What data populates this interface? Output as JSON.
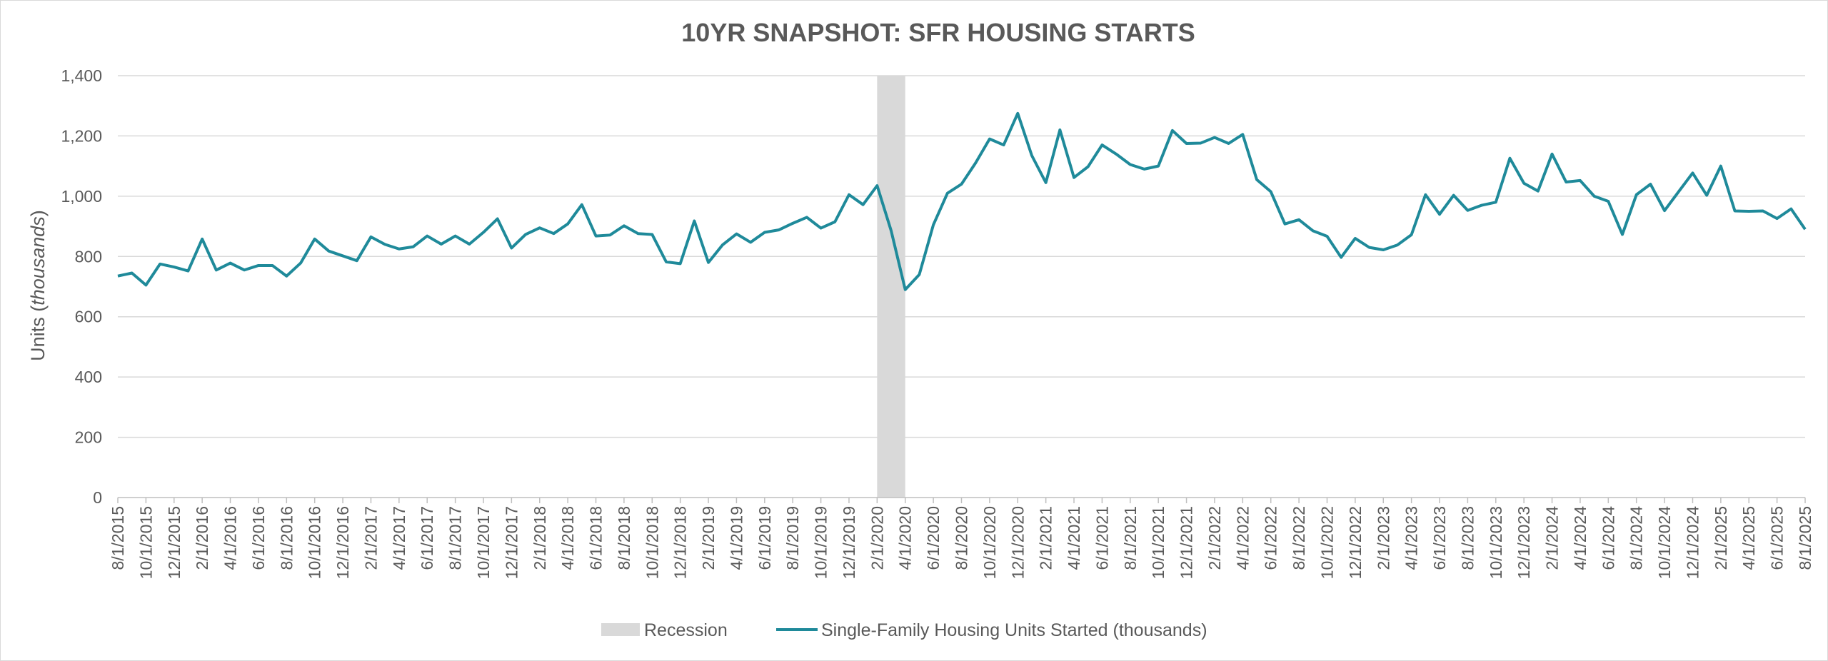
{
  "chart_data": {
    "type": "line",
    "title": "10YR SNAPSHOT: SFR HOUSING STARTS",
    "ylabel_prefix": "Units (",
    "ylabel_italic": "thousands",
    "ylabel_suffix": ")",
    "xlabel": "",
    "ylim": [
      0,
      1400
    ],
    "yticks": [
      0,
      200,
      400,
      600,
      800,
      1000,
      1200,
      1400
    ],
    "ytick_labels": [
      "0",
      "200",
      "400",
      "600",
      "800",
      "1,000",
      "1,200",
      "1,400"
    ],
    "grid": true,
    "legend_position": "bottom",
    "colors": {
      "line": "#1f8a9a",
      "recession": "#d9d9d9",
      "grid": "#d9d9d9",
      "axis": "#bfbfbf",
      "text": "#595959"
    },
    "x_tick_labels": [
      "8/1/2015",
      "10/1/2015",
      "12/1/2015",
      "2/1/2016",
      "4/1/2016",
      "6/1/2016",
      "8/1/2016",
      "10/1/2016",
      "12/1/2016",
      "2/1/2017",
      "4/1/2017",
      "6/1/2017",
      "8/1/2017",
      "10/1/2017",
      "12/1/2017",
      "2/1/2018",
      "4/1/2018",
      "6/1/2018",
      "8/1/2018",
      "10/1/2018",
      "12/1/2018",
      "2/1/2019",
      "4/1/2019",
      "6/1/2019",
      "8/1/2019",
      "10/1/2019",
      "12/1/2019",
      "2/1/2020",
      "4/1/2020",
      "6/1/2020",
      "8/1/2020",
      "10/1/2020",
      "12/1/2020",
      "2/1/2021",
      "4/1/2021",
      "6/1/2021",
      "8/1/2021",
      "10/1/2021",
      "12/1/2021",
      "2/1/2022",
      "4/1/2022",
      "6/1/2022",
      "8/1/2022",
      "10/1/2022",
      "12/1/2022",
      "2/1/2023",
      "4/1/2023",
      "6/1/2023",
      "8/1/2023",
      "10/1/2023",
      "12/1/2023",
      "2/1/2024",
      "4/1/2024",
      "6/1/2024",
      "8/1/2024",
      "10/1/2024",
      "12/1/2024",
      "2/1/2025",
      "4/1/2025",
      "6/1/2025",
      "8/1/2025"
    ],
    "recession": {
      "name": "Recession",
      "start": "2/1/2020",
      "end": "4/1/2020"
    },
    "series": [
      {
        "name": "Single-Family Housing Units Started (thousands)",
        "start": "8/1/2015",
        "frequency": "monthly",
        "values": [
          735,
          745,
          705,
          775,
          765,
          752,
          858,
          755,
          778,
          755,
          770,
          770,
          735,
          778,
          858,
          818,
          802,
          786,
          865,
          840,
          825,
          832,
          868,
          841,
          868,
          841,
          880,
          925,
          828,
          873,
          895,
          876,
          908,
          972,
          868,
          871,
          902,
          876,
          873,
          782,
          776,
          918,
          780,
          838,
          875,
          847,
          880,
          888,
          910,
          930,
          894,
          915,
          1005,
          972,
          1035,
          885,
          690,
          740,
          905,
          1010,
          1040,
          1110,
          1190,
          1170,
          1275,
          1135,
          1045,
          1220,
          1062,
          1098,
          1170,
          1140,
          1105,
          1090,
          1100,
          1218,
          1175,
          1176,
          1195,
          1175,
          1205,
          1055,
          1015,
          908,
          922,
          885,
          867,
          797,
          860,
          830,
          822,
          838,
          872,
          1005,
          940,
          1003,
          953,
          970,
          980,
          1126,
          1043,
          1017,
          1140,
          1047,
          1052,
          1000,
          983,
          873,
          1005,
          1040,
          952,
          1015,
          1077,
          1003,
          1100,
          951,
          950,
          951,
          926,
          958,
          890
        ]
      }
    ]
  }
}
